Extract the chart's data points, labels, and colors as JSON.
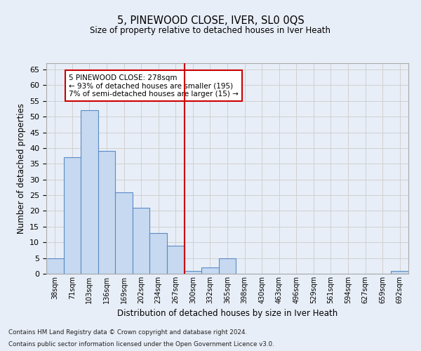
{
  "title": "5, PINEWOOD CLOSE, IVER, SL0 0QS",
  "subtitle": "Size of property relative to detached houses in Iver Heath",
  "xlabel": "Distribution of detached houses by size in Iver Heath",
  "ylabel": "Number of detached properties",
  "categories": [
    "38sqm",
    "71sqm",
    "103sqm",
    "136sqm",
    "169sqm",
    "202sqm",
    "234sqm",
    "267sqm",
    "300sqm",
    "332sqm",
    "365sqm",
    "398sqm",
    "430sqm",
    "463sqm",
    "496sqm",
    "529sqm",
    "561sqm",
    "594sqm",
    "627sqm",
    "659sqm",
    "692sqm"
  ],
  "values": [
    5,
    37,
    52,
    39,
    26,
    21,
    13,
    9,
    1,
    2,
    5,
    0,
    0,
    0,
    0,
    0,
    0,
    0,
    0,
    0,
    1
  ],
  "bar_color": "#c6d9f0",
  "bar_edge_color": "#5a8ac6",
  "grid_color": "#d0d0d0",
  "vline_x": 7.5,
  "vline_color": "#cc0000",
  "annotation_text": "5 PINEWOOD CLOSE: 278sqm\n← 93% of detached houses are smaller (195)\n7% of semi-detached houses are larger (15) →",
  "annotation_box_color": "#ffffff",
  "annotation_box_edge": "#cc0000",
  "ylim": [
    0,
    67
  ],
  "yticks": [
    0,
    5,
    10,
    15,
    20,
    25,
    30,
    35,
    40,
    45,
    50,
    55,
    60,
    65
  ],
  "footer_line1": "Contains HM Land Registry data © Crown copyright and database right 2024.",
  "footer_line2": "Contains public sector information licensed under the Open Government Licence v3.0.",
  "background_color": "#e8eef7"
}
